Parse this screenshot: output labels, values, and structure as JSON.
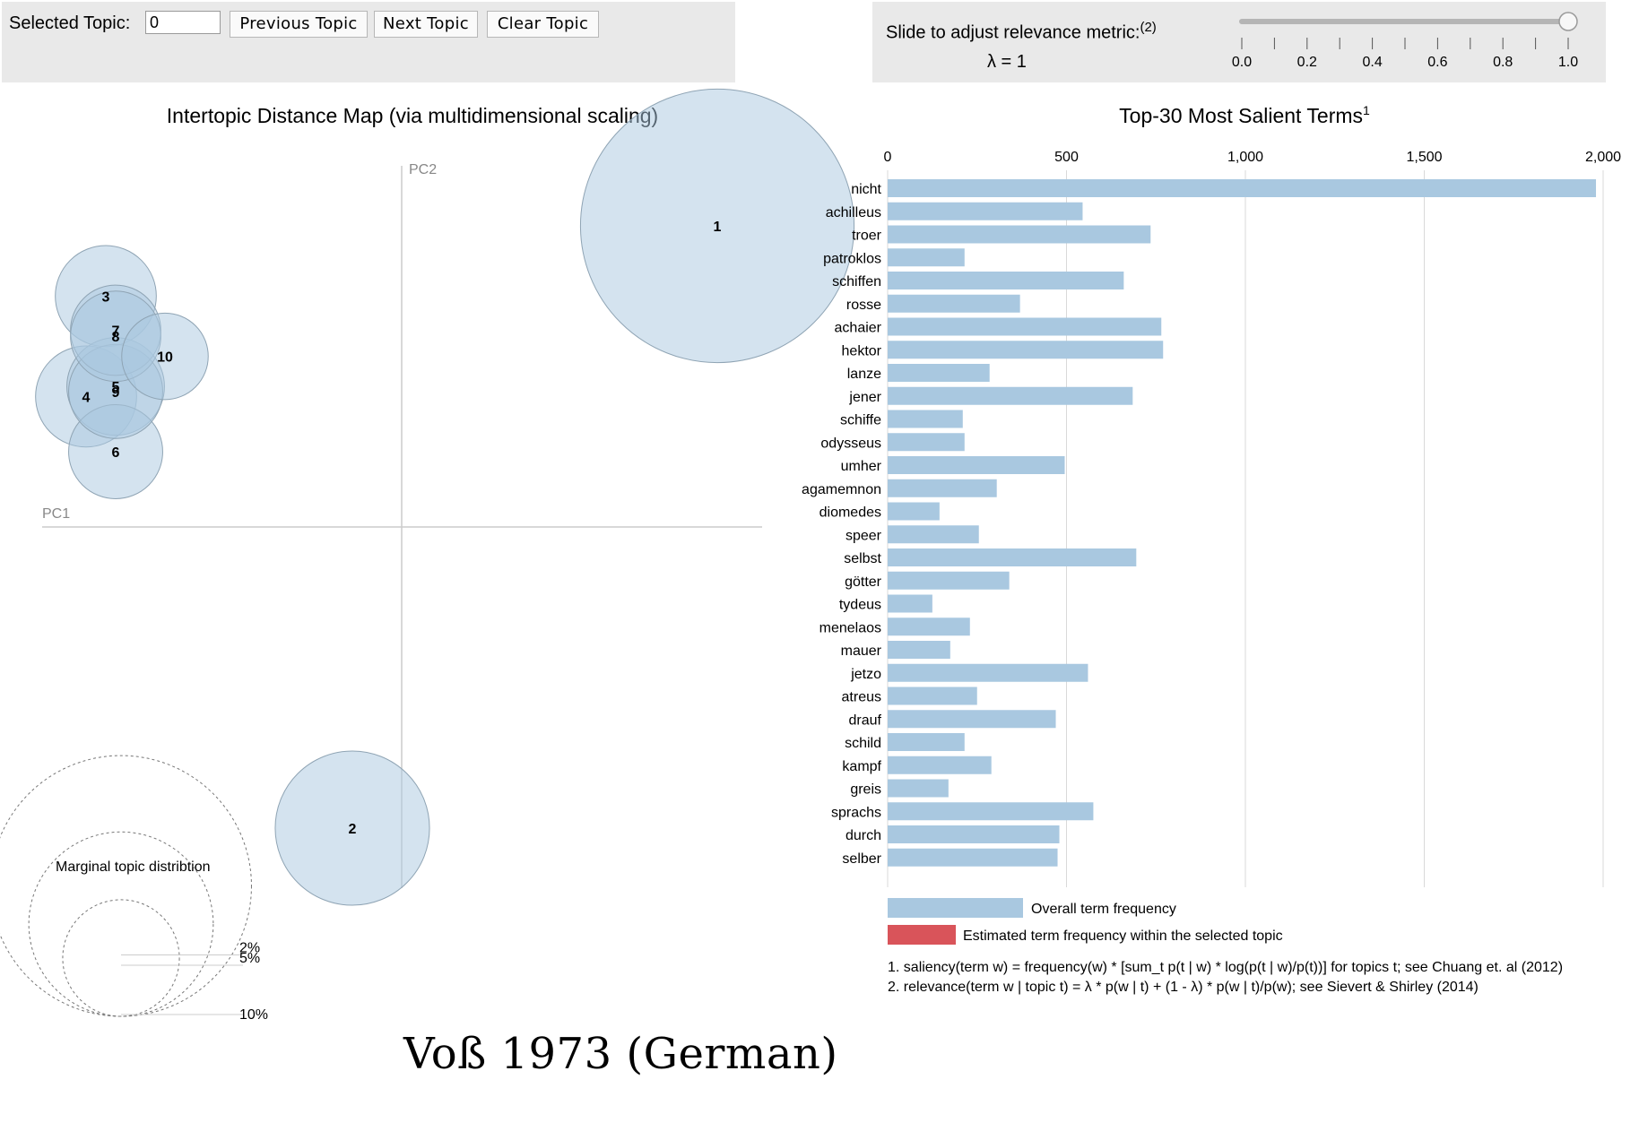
{
  "controls": {
    "selected_topic_label": "Selected Topic:",
    "selected_topic_value": "0",
    "prev_label": "Previous Topic",
    "next_label": "Next Topic",
    "clear_label": "Clear Topic",
    "slider_label": "Slide to adjust relevance metric:",
    "slider_note": "(2)",
    "lambda_text": "λ = 1",
    "lambda_value": 1.0,
    "slider_ticks": [
      "0.0",
      "0.2",
      "0.4",
      "0.6",
      "0.8",
      "1.0"
    ]
  },
  "colors": {
    "bar": "#a9c8e0",
    "topic_highlight": "#d9545a",
    "circle_fill": "#a9c8e0",
    "circle_stroke": "#8fa4b4"
  },
  "footer_title": "Voß 1973 (German)",
  "chart_data": [
    {
      "type": "scatter",
      "title": "Intertopic Distance Map (via multidimensional scaling)",
      "xlabel": "PC1",
      "ylabel": "PC2",
      "xlim": [
        -0.35,
        0.35
      ],
      "ylim": [
        -0.35,
        0.35
      ],
      "topics": [
        {
          "id": "1",
          "x": 0.32,
          "y": 0.3,
          "pct": 11.0
        },
        {
          "id": "2",
          "x": -0.05,
          "y": -0.3,
          "pct": 3.5
        },
        {
          "id": "3",
          "x": -0.3,
          "y": 0.23,
          "pct": 1.5
        },
        {
          "id": "4",
          "x": -0.32,
          "y": 0.13,
          "pct": 1.5
        },
        {
          "id": "5",
          "x": -0.29,
          "y": 0.14,
          "pct": 1.4
        },
        {
          "id": "6",
          "x": -0.29,
          "y": 0.075,
          "pct": 1.3
        },
        {
          "id": "7",
          "x": -0.29,
          "y": 0.196,
          "pct": 1.2
        },
        {
          "id": "8",
          "x": -0.29,
          "y": 0.19,
          "pct": 1.2
        },
        {
          "id": "9",
          "x": -0.29,
          "y": 0.135,
          "pct": 1.3
        },
        {
          "id": "10",
          "x": -0.24,
          "y": 0.17,
          "pct": 1.1
        }
      ],
      "legend": {
        "title": "Marginal topic distribtion",
        "entries": [
          {
            "label": "2%",
            "pct": 2
          },
          {
            "label": "5%",
            "pct": 5
          },
          {
            "label": "10%",
            "pct": 10
          }
        ]
      }
    },
    {
      "type": "bar",
      "orientation": "horizontal",
      "title": "Top-30 Most Salient Terms",
      "title_note": "1",
      "xlim": [
        0,
        2000
      ],
      "xticks": [
        0,
        500,
        1000,
        1500,
        2000
      ],
      "xtick_labels": [
        "0",
        "500",
        "1,000",
        "1,500",
        "2,000"
      ],
      "categories": [
        "nicht",
        "achilleus",
        "troer",
        "patroklos",
        "schiffen",
        "rosse",
        "achaier",
        "hektor",
        "lanze",
        "jener",
        "schiffe",
        "odysseus",
        "umher",
        "agamemnon",
        "diomedes",
        "speer",
        "selbst",
        "götter",
        "tydeus",
        "menelaos",
        "mauer",
        "jetzo",
        "atreus",
        "drauf",
        "schild",
        "kampf",
        "greis",
        "sprachs",
        "durch",
        "selber"
      ],
      "values": [
        1980,
        545,
        735,
        215,
        660,
        370,
        765,
        770,
        285,
        685,
        210,
        215,
        495,
        305,
        145,
        255,
        695,
        340,
        125,
        230,
        175,
        560,
        250,
        470,
        215,
        290,
        170,
        575,
        480,
        475
      ],
      "legend": [
        {
          "label": "Overall term frequency",
          "color": "#a9c8e0"
        },
        {
          "label": "Estimated term frequency within the selected topic",
          "color": "#d9545a"
        }
      ],
      "footnotes": [
        "1. saliency(term w) = frequency(w) * [sum_t p(t | w) * log(p(t | w)/p(t))] for topics t; see Chuang et. al (2012)",
        "2. relevance(term w | topic t) = λ * p(w | t) + (1 - λ) * p(w | t)/p(w); see Sievert & Shirley (2014)"
      ]
    }
  ]
}
